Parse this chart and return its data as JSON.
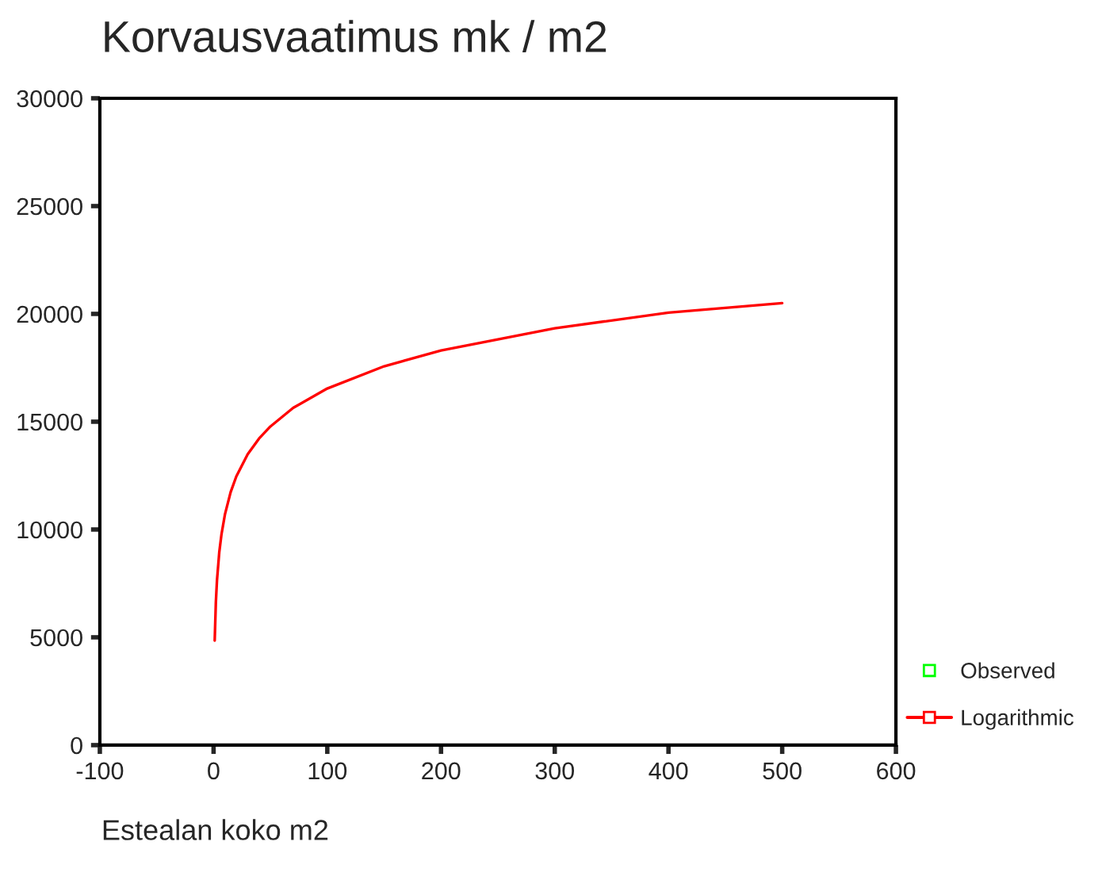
{
  "chart_data": {
    "type": "line",
    "title": "Korvausvaatimus mk / m2",
    "xlabel": "Estealan koko m2",
    "xlim": [
      -100,
      600
    ],
    "xticks": [
      -100,
      0,
      100,
      200,
      300,
      400,
      500,
      600
    ],
    "ylim": [
      0,
      30000
    ],
    "yticks": [
      0,
      5000,
      10000,
      15000,
      20000,
      25000,
      30000
    ],
    "grid": false,
    "legend": "bottom right",
    "series": [
      {
        "name": "Observed",
        "type": "scatter",
        "marker": "square",
        "color": "#00ff00"
      },
      {
        "name": "Logarithmic",
        "marker": "none",
        "color": "#ff0000",
        "x": [
          1,
          2,
          3,
          5,
          7,
          10,
          15,
          20,
          30,
          40,
          50,
          70,
          100,
          150,
          200,
          300,
          400,
          500
        ],
        "values": [
          4850,
          6610,
          7640,
          8940,
          9790,
          10700,
          11730,
          12460,
          13490,
          14220,
          14780,
          15640,
          16540,
          17570,
          18300,
          19330,
          20060,
          20500
        ]
      }
    ]
  }
}
